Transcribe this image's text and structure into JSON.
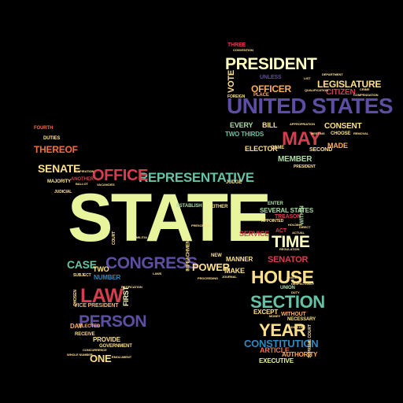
{
  "palette": {
    "background": "#000000",
    "lime": "#e8f59c",
    "purple": "#5d4ea2",
    "red": "#d53e4f",
    "orange": "#f46d43",
    "amber": "#fdae61",
    "yellow": "#fee08b",
    "green": "#abdda4",
    "teal": "#66c2a5",
    "blue": "#3288bd",
    "cream": "#ffffbf"
  },
  "words": {
    "state": "STATE",
    "united_states": "UNITED STATES",
    "president": "PRESIDENT",
    "congress": "CONGRESS",
    "person": "PERSON",
    "law": "LAW",
    "house": "HOUSE",
    "section": "SECTION",
    "representative": "REPRESENTATIVE",
    "office": "OFFICE",
    "may": "MAY",
    "year": "YEAR",
    "constitution": "CONSTITUTION",
    "time": "TIME",
    "power": "POWER",
    "case": "CASE",
    "senate": "SENATE",
    "thereof": "THEREOF",
    "legislature": "LEGISLATURE",
    "officer": "OFFICER",
    "vote": "VOTE",
    "citizen": "CITIZEN",
    "consent": "CONSENT",
    "member": "MEMBER",
    "elector": "ELECTOR",
    "bill": "BILL",
    "every": "EVERY",
    "two_thirds": "TWO THIRDS",
    "senator": "SENATOR",
    "one": "ONE",
    "article": "ARTICLE",
    "executive": "EXECUTIVE",
    "authority": "AUTHORITY",
    "service": "SERVICE",
    "several_states": "SEVERAL STATES",
    "make": "MAKE",
    "manner": "MANNER",
    "number": "NUMBER",
    "two": "TWO",
    "first": "FIRST",
    "provide": "PROVIDE",
    "vice_president": "VICE PRESIDENT",
    "government": "GOVERNMENT",
    "except": "EXCEPT",
    "without": "WITHOUT",
    "necessary": "NECESSARY",
    "treason": "TREASON",
    "act": "ACT",
    "within": "WITHIN",
    "duties": "DUTIES",
    "fourth": "FOURTH",
    "three": "THREE",
    "unless": "UNLESS",
    "foreign": "FOREIGN",
    "place": "PLACE",
    "made": "MADE",
    "second": "SECOND",
    "choose": "CHOOSE",
    "came": "CAME",
    "judge": "JUDGE",
    "establish": "ESTABLISH",
    "new": "NEW",
    "either": "EITHER",
    "enter": "ENTER",
    "union": "UNION",
    "elected": "ELECTED",
    "receive": "RECEIVE",
    "majority": "MAJORITY",
    "another": "ANOTHER",
    "impeachment": "IMPEACHMENT",
    "appointed": "APPOINTED",
    "day": "DAY",
    "supreme_court": "SUPREME COURT",
    "subject": "SUBJECT",
    "present": "PRESIDENT",
    "judicial": "JUDICIAL",
    "chosen": "CHOSEN",
    "court": "COURT",
    "department": "DEPARTMENT",
    "list": "LIST",
    "appropriation": "APPROPRIATION",
    "compensation": "COMPENSATION",
    "qualification": "QUALIFICATION",
    "crime": "CRIME",
    "removal": "REMOVAL",
    "vacancies": "VACANCIES",
    "direct": "DIRECT",
    "whole_number": "WHOLE NUMBER",
    "regulation": "REGULATION",
    "convention": "CONVENTION",
    "shall": "SHALL",
    "money": "MONEY",
    "militia": "MILITIA",
    "ballot": "BALLOT",
    "meeting": "MEETING",
    "holding": "HOLDING",
    "concurrence": "CONCURRENCE",
    "respectively": "RESPECTIVELY",
    "duty": "DUTY",
    "emolument": "EMOLUMENT",
    "ratification": "RATIFICATION",
    "journal": "JOURNAL",
    "proceeding": "PROCEEDING",
    "admitted": "ADMITTED",
    "actual": "ACTUAL",
    "law_small": "LAWS",
    "expiration": "EXPIRATION",
    "prescribed": "PRESCRIBED"
  }
}
